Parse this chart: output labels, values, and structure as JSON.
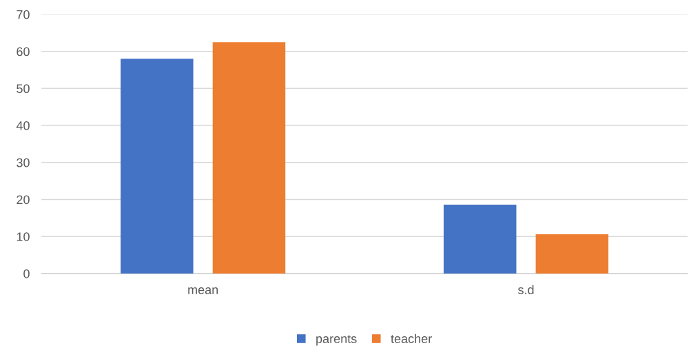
{
  "chart_data": {
    "type": "bar",
    "categories": [
      "mean",
      "s.d"
    ],
    "series": [
      {
        "name": "parents",
        "color": "#4472c4",
        "values": [
          58,
          18.6
        ]
      },
      {
        "name": "teacher",
        "color": "#ed7d31",
        "values": [
          62.5,
          10.6
        ]
      }
    ],
    "ylim": [
      0,
      70
    ],
    "yticks": [
      0,
      10,
      20,
      30,
      40,
      50,
      60,
      70
    ],
    "grid": "y",
    "legend": "bottom"
  }
}
